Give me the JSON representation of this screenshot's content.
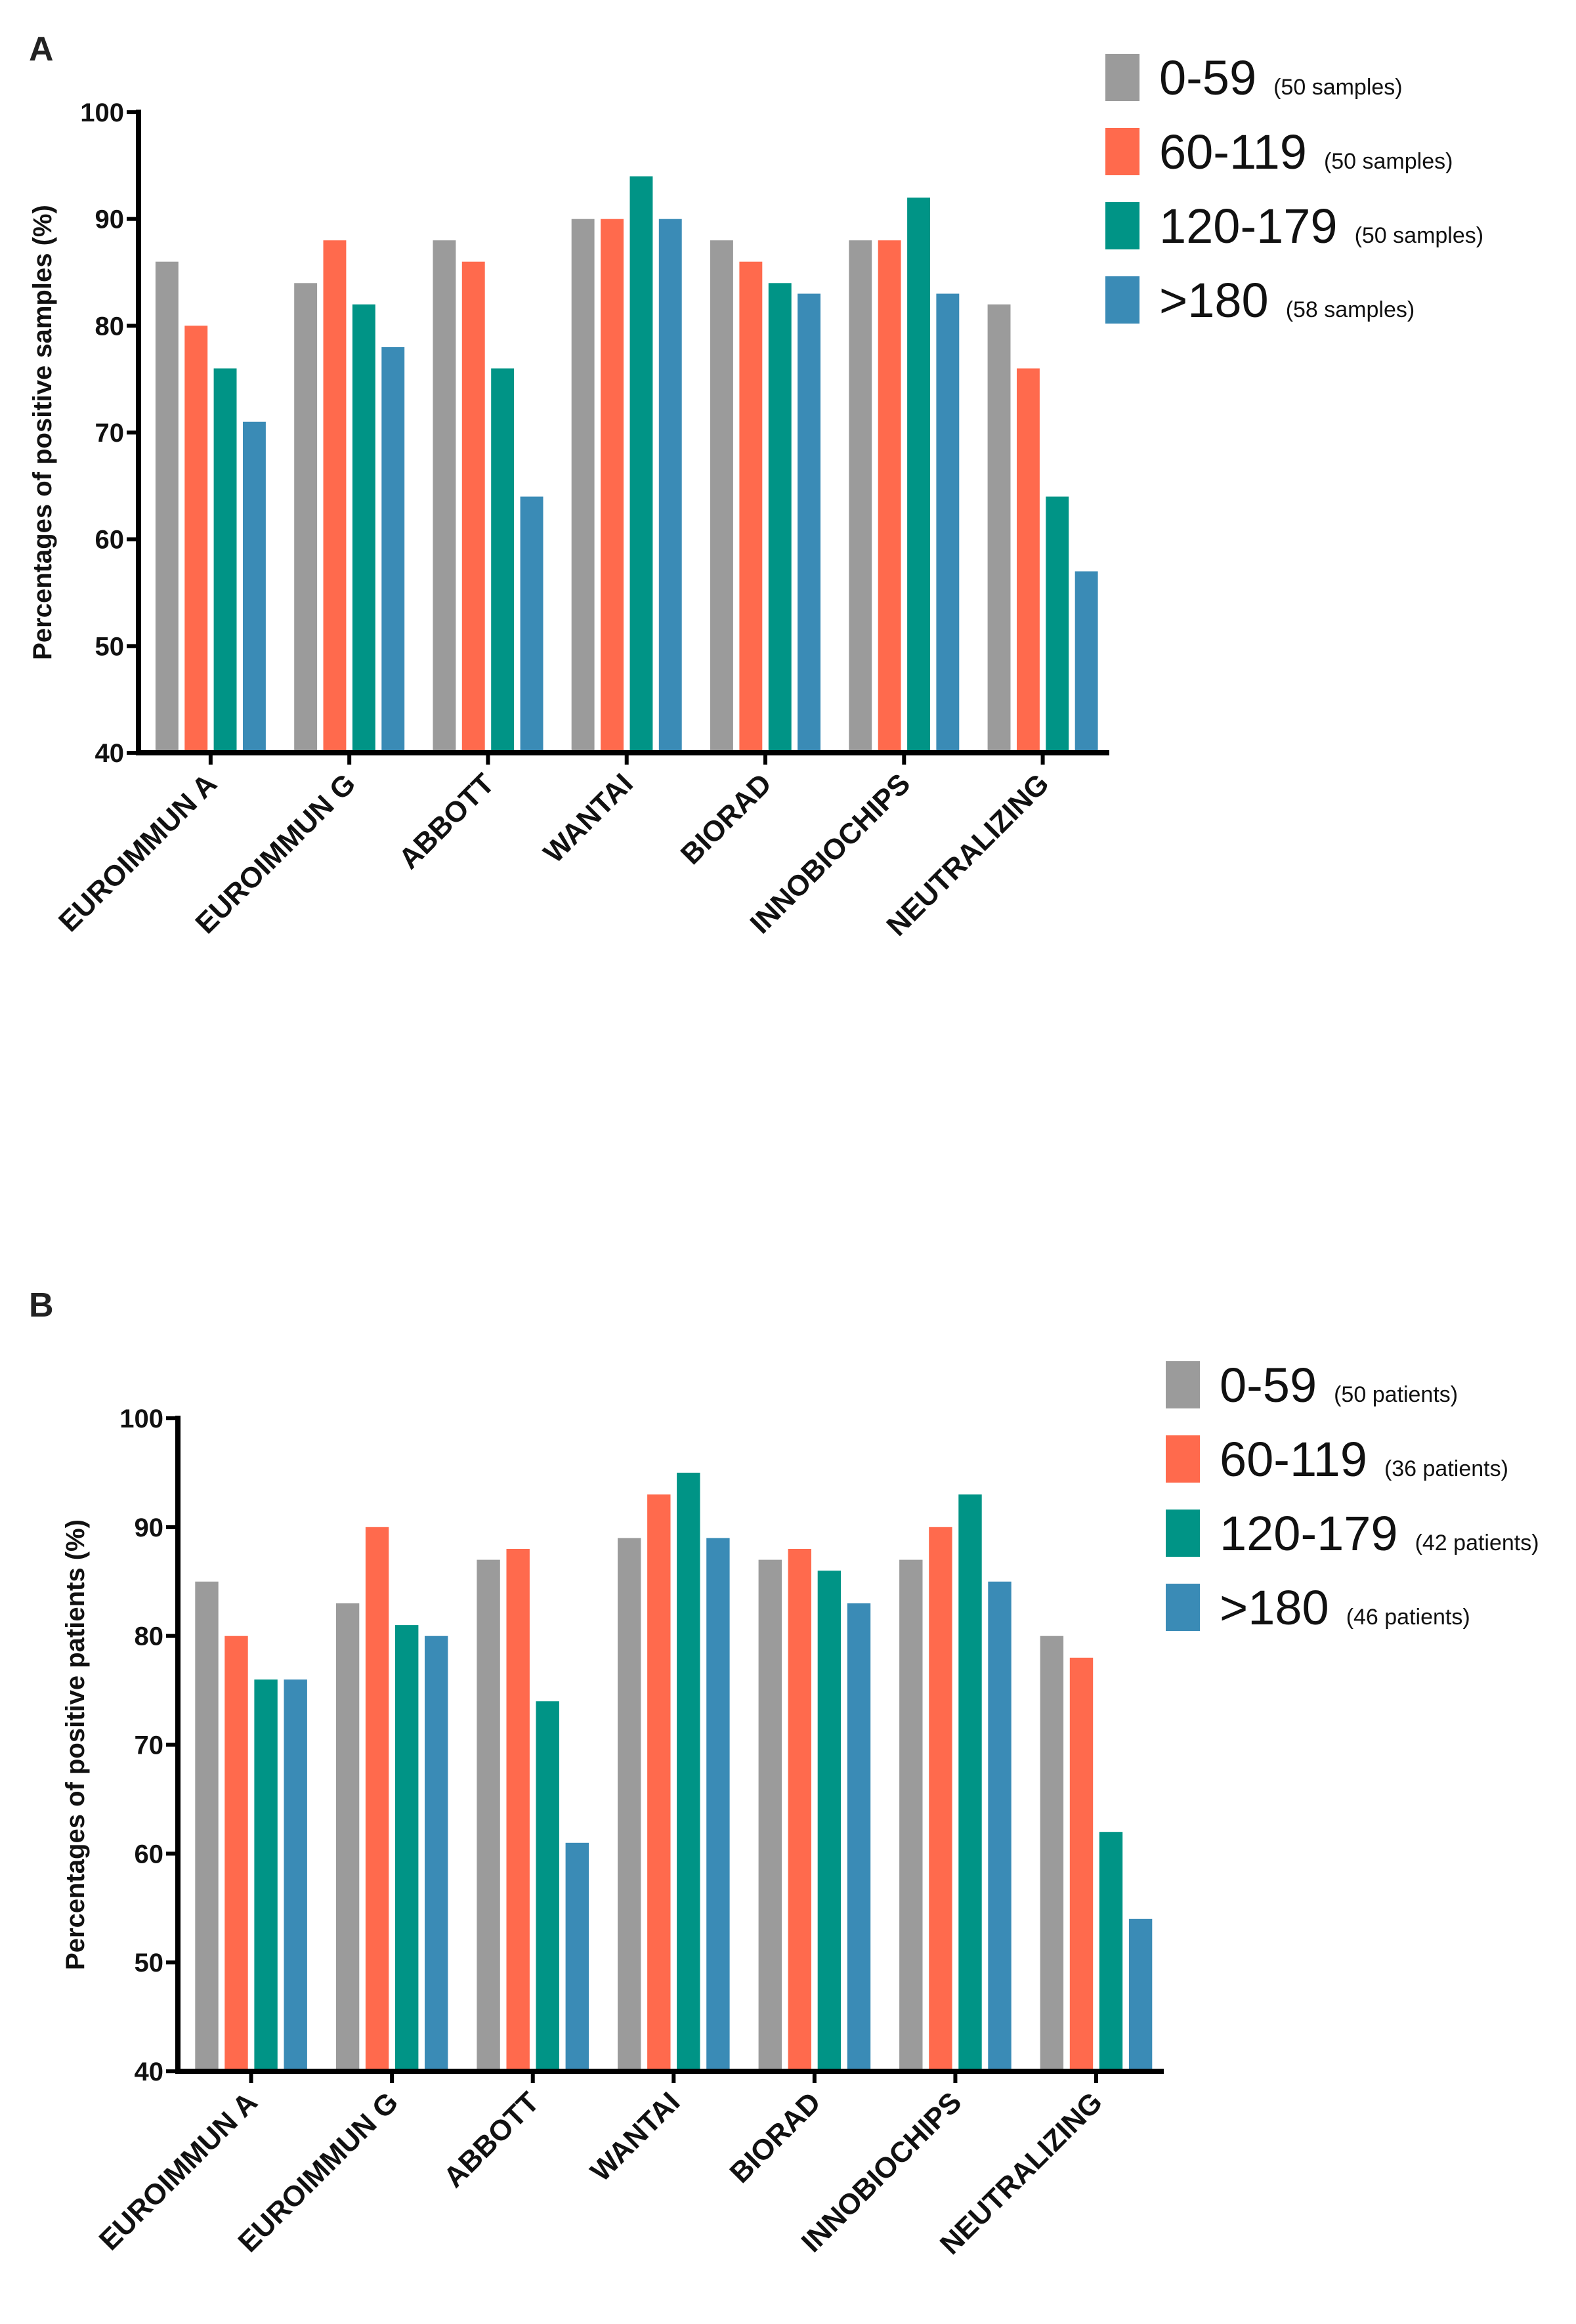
{
  "figure": {
    "colors": {
      "0-59": "#9b9b9b",
      "60-119": "#ff6a4d",
      "120-179": "#009486",
      ">180": "#3a8bb6",
      "axis": "#000000"
    }
  },
  "chart_data": [
    {
      "panel": "A",
      "type": "bar",
      "ylabel": "Percentages of positive samples (%)",
      "xlabel": "",
      "ylim": [
        40,
        100
      ],
      "yticks": [
        40,
        50,
        60,
        70,
        80,
        90,
        100
      ],
      "tick_labels": [
        "40",
        "50",
        "60",
        "70",
        "80",
        "90",
        "100"
      ],
      "categories": [
        "EUROIMMUN A",
        "EUROIMMUN G",
        "ABBOTT",
        "WANTAI",
        "BIORAD",
        "INNOBIOCHIPS",
        "NEUTRALIZING"
      ],
      "legend_position": "top-right",
      "series": [
        {
          "name": "0-59",
          "note": "(50 samples)",
          "values": [
            86,
            84,
            88,
            90,
            88,
            88,
            82
          ]
        },
        {
          "name": "60-119",
          "note": "(50 samples)",
          "values": [
            80,
            88,
            86,
            90,
            86,
            88,
            76
          ]
        },
        {
          "name": "120-179",
          "note": "(50 samples)",
          "values": [
            76,
            82,
            76,
            94,
            84,
            92,
            64
          ]
        },
        {
          "name": ">180",
          "note": "(58 samples)",
          "values": [
            71,
            78,
            64,
            90,
            83,
            83,
            57
          ]
        }
      ]
    },
    {
      "panel": "B",
      "type": "bar",
      "ylabel": "Percentages of positive patients (%)",
      "xlabel": "",
      "ylim": [
        40,
        100
      ],
      "yticks": [
        40,
        50,
        60,
        70,
        80,
        90,
        100
      ],
      "tick_labels": [
        "40",
        "50",
        "60",
        "70",
        "80",
        "90",
        "100"
      ],
      "categories": [
        "EUROIMMUN A",
        "EUROIMMUN G",
        "ABBOTT",
        "WANTAI",
        "BIORAD",
        "INNOBIOCHIPS",
        "NEUTRALIZING"
      ],
      "legend_position": "top-right",
      "series": [
        {
          "name": "0-59",
          "note": "(50 patients)",
          "values": [
            85,
            83,
            87,
            89,
            87,
            87,
            80
          ]
        },
        {
          "name": "60-119",
          "note": "(36 patients)",
          "values": [
            80,
            90,
            88,
            93,
            88,
            90,
            78
          ]
        },
        {
          "name": "120-179",
          "note": "(42 patients)",
          "values": [
            76,
            81,
            74,
            95,
            86,
            93,
            62
          ]
        },
        {
          "name": ">180",
          "note": "(46 patients)",
          "values": [
            76,
            80,
            61,
            89,
            83,
            85,
            54
          ]
        }
      ]
    }
  ]
}
